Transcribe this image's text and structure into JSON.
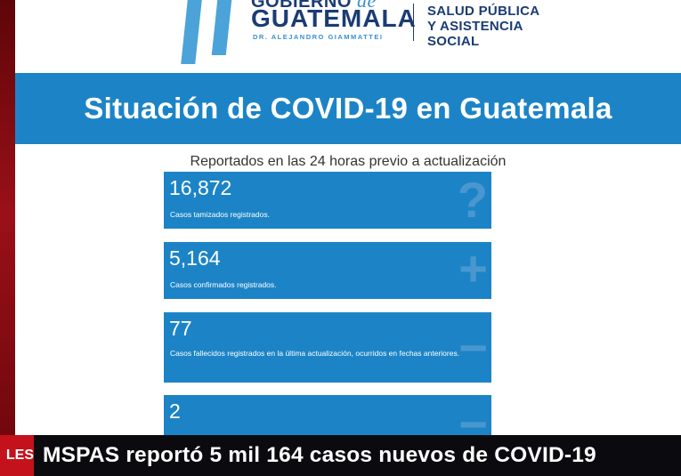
{
  "header": {
    "gov_line1": "GOBIERNO",
    "gov_de": "de",
    "gov_line2": "GUATEMALA",
    "gov_line3": "DR. ALEJANDRO GIAMMATTEI",
    "ministry_line1": "SALUD PÚBLICA",
    "ministry_line2": "Y ASISTENCIA",
    "ministry_line3": "SOCIAL"
  },
  "title": "Situación de COVID-19 en Guatemala",
  "subtitle": "Reportados en las 24 horas previo a actualización",
  "cards": [
    {
      "value": "16,872",
      "label": "Casos tamizados registrados.",
      "icon": "question-icon",
      "symbol": "?"
    },
    {
      "value": "5,164",
      "label": "Casos confirmados registrados.",
      "icon": "plus-icon",
      "symbol": "+"
    },
    {
      "value": "77",
      "label": "Casos fallecidos registrados en la última actualización, ocurridos en fechas anteriores.",
      "icon": "minus-icon",
      "symbol": "−"
    },
    {
      "value": "2",
      "label": "",
      "icon": "minus-icon",
      "symbol": "−"
    }
  ],
  "ticker": {
    "tag": "LES",
    "headline": "MSPAS reportó 5 mil 164 casos nuevos de COVID-19"
  },
  "colors": {
    "banner": "#1c84c6",
    "navy": "#1b3c73",
    "ticker_red": "#c4121c"
  }
}
